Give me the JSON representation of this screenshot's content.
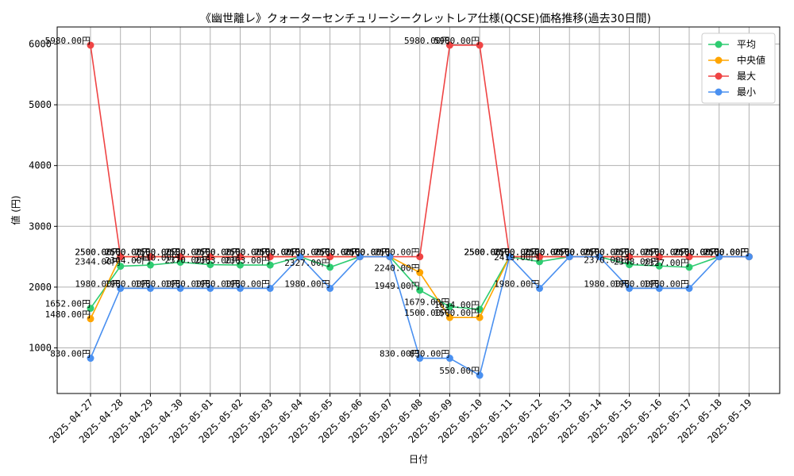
{
  "chart_data": {
    "type": "line",
    "title": "《幽世離レ》クォーターセンチュリーシークレットレア仕様(QCSE)価格推移(過去30日間)",
    "xlabel": "日付",
    "ylabel": "値 (円)",
    "ylim": [
      250,
      6280
    ],
    "yticks": [
      1000,
      2000,
      3000,
      4000,
      5000,
      6000
    ],
    "grid": true,
    "legend_position": "top-right",
    "value_suffix": "円",
    "categories": [
      "2025-04-27",
      "2025-04-28",
      "2025-04-29",
      "2025-04-30",
      "2025-05-01",
      "2025-05-02",
      "2025-05-03",
      "2025-05-04",
      "2025-05-05",
      "2025-05-06",
      "2025-05-07",
      "2025-05-08",
      "2025-05-09",
      "2025-05-10",
      "2025-05-11",
      "2025-05-12",
      "2025-05-13",
      "2025-05-14",
      "2025-05-15",
      "2025-05-16",
      "2025-05-17",
      "2025-05-18",
      "2025-05-19"
    ],
    "series": [
      {
        "name": "平均",
        "color": "#2ecc71",
        "values": [
          1652,
          2344,
          2364,
          2410,
          2370,
          2363,
          2363,
          2500,
          2327,
          2500,
          2500,
          1949,
          1679,
          1634,
          2500,
          2419,
          2500,
          2500,
          2370,
          2348,
          2327,
          2500,
          2500
        ]
      },
      {
        "name": "中央値",
        "color": "#ffa500",
        "values": [
          1480,
          2500,
          2500,
          2500,
          2500,
          2500,
          2500,
          2500,
          2500,
          2500,
          2500,
          2240,
          1500,
          1500,
          2500,
          2500,
          2500,
          2500,
          2500,
          2500,
          2500,
          2500,
          2500
        ]
      },
      {
        "name": "最大",
        "color": "#ef4444",
        "values": [
          5980,
          2500,
          2500,
          2500,
          2500,
          2500,
          2500,
          2500,
          2500,
          2500,
          2500,
          2500,
          5980,
          5980,
          2500,
          2500,
          2500,
          2500,
          2500,
          2500,
          2500,
          2500,
          2500
        ]
      },
      {
        "name": "最小",
        "color": "#4a90f0",
        "values": [
          830,
          1980,
          1980,
          1980,
          1980,
          1980,
          1980,
          2500,
          1980,
          2500,
          2500,
          830,
          830,
          550,
          2500,
          1980,
          2500,
          2500,
          1980,
          1980,
          1980,
          2500,
          2500
        ]
      }
    ]
  }
}
